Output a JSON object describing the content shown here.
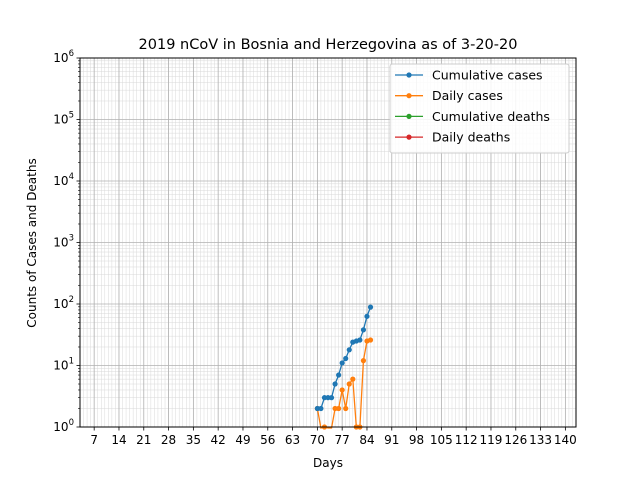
{
  "chart_data": {
    "type": "line",
    "title": "2019 nCoV in Bosnia and Herzegovina as of 3-20-20",
    "xlabel": "Days",
    "ylabel": "Counts of Cases and Deaths",
    "xlim": [
      3,
      143
    ],
    "ylim": [
      1,
      1000000
    ],
    "yscale": "log",
    "grid": true,
    "legend_position": "top-right",
    "x_ticks": [
      7,
      14,
      21,
      28,
      35,
      42,
      49,
      56,
      63,
      70,
      77,
      84,
      91,
      98,
      105,
      112,
      119,
      126,
      133,
      140
    ],
    "x_tick_labels": [
      "7",
      "14",
      "21",
      "28",
      "35",
      "42",
      "49",
      "56",
      "63",
      "70",
      "77",
      "84",
      "91",
      "98",
      "105",
      "112",
      "119",
      "126",
      "133",
      "140"
    ],
    "y_ticks": [
      {
        "value": 1,
        "base": "10",
        "exp": "0"
      },
      {
        "value": 10,
        "base": "10",
        "exp": "1"
      },
      {
        "value": 100,
        "base": "10",
        "exp": "2"
      },
      {
        "value": 1000,
        "base": "10",
        "exp": "3"
      },
      {
        "value": 10000,
        "base": "10",
        "exp": "4"
      },
      {
        "value": 100000,
        "base": "10",
        "exp": "5"
      },
      {
        "value": 1000000,
        "base": "10",
        "exp": "6"
      }
    ],
    "series": [
      {
        "name": "Cumulative cases",
        "color": "#1f77b4",
        "x": [
          70,
          71,
          72,
          73,
          74,
          75,
          76,
          77,
          78,
          79,
          80,
          81,
          82,
          83,
          84,
          85
        ],
        "values": [
          2,
          2,
          3,
          3,
          3,
          5,
          7,
          11,
          13,
          18,
          24,
          25,
          26,
          38,
          63,
          89
        ]
      },
      {
        "name": "Daily cases",
        "color": "#ff7f0e",
        "x": [
          70,
          71,
          72,
          73,
          74,
          75,
          76,
          77,
          78,
          79,
          80,
          81,
          82,
          83,
          84,
          85
        ],
        "values": [
          2,
          0,
          1,
          0,
          0,
          2,
          2,
          4,
          2,
          5,
          6,
          1,
          1,
          12,
          25,
          26
        ]
      },
      {
        "name": "Cumulative deaths",
        "color": "#2ca02c",
        "x": [],
        "values": []
      },
      {
        "name": "Daily deaths",
        "color": "#d62728",
        "x": [],
        "values": []
      }
    ]
  }
}
